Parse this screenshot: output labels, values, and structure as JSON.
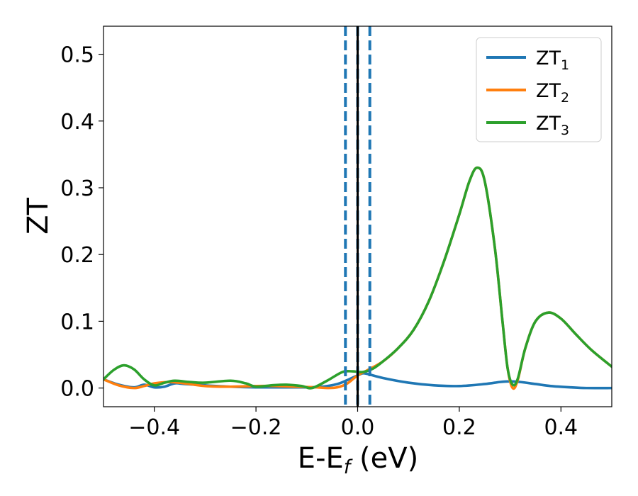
{
  "chart_data": {
    "type": "line",
    "xlabel": {
      "main": "E-E",
      "sub": "f",
      "rest": " (eV)"
    },
    "ylabel": "ZT",
    "xlim": [
      -0.5,
      0.5
    ],
    "ylim": [
      -0.028,
      0.542
    ],
    "xticks": [
      -0.4,
      -0.2,
      0.0,
      0.2,
      0.4
    ],
    "xtick_labels": [
      "−0.4",
      "−0.2",
      "0.0",
      "0.2",
      "0.4"
    ],
    "yticks": [
      0.0,
      0.1,
      0.2,
      0.3,
      0.4,
      0.5
    ],
    "ytick_labels": [
      "0.0",
      "0.1",
      "0.2",
      "0.3",
      "0.4",
      "0.5"
    ],
    "grid": false,
    "legend_position": "top-right",
    "vlines": [
      {
        "x": -0.024,
        "style": "dashed",
        "color": "#1f77b4"
      },
      {
        "x": 0.0,
        "style": "dashed",
        "color": "#1f77b4"
      },
      {
        "x": 0.0,
        "style": "solid",
        "color": "#000000"
      },
      {
        "x": 0.024,
        "style": "dashed",
        "color": "#1f77b4"
      }
    ],
    "series": [
      {
        "name": "ZT",
        "sub": "1",
        "color": "#1f77b4",
        "points": [
          [
            -0.5,
            0.013
          ],
          [
            -0.47,
            0.005
          ],
          [
            -0.44,
            0.001
          ],
          [
            -0.42,
            0.005
          ],
          [
            -0.4,
            0.001
          ],
          [
            -0.38,
            0.002
          ],
          [
            -0.36,
            0.007
          ],
          [
            -0.34,
            0.006
          ],
          [
            -0.3,
            0.004
          ],
          [
            -0.25,
            0.002
          ],
          [
            -0.2,
            0.001
          ],
          [
            -0.15,
            0.001
          ],
          [
            -0.1,
            0.001
          ],
          [
            -0.07,
            0.002
          ],
          [
            -0.04,
            0.006
          ],
          [
            -0.02,
            0.012
          ],
          [
            0.0,
            0.019
          ],
          [
            0.01,
            0.022
          ],
          [
            0.02,
            0.021
          ],
          [
            0.05,
            0.015
          ],
          [
            0.1,
            0.008
          ],
          [
            0.15,
            0.004
          ],
          [
            0.2,
            0.003
          ],
          [
            0.25,
            0.006
          ],
          [
            0.28,
            0.009
          ],
          [
            0.3,
            0.01
          ],
          [
            0.32,
            0.009
          ],
          [
            0.35,
            0.006
          ],
          [
            0.38,
            0.003
          ],
          [
            0.42,
            0.001
          ],
          [
            0.45,
            0.0
          ],
          [
            0.5,
            0.0
          ]
        ]
      },
      {
        "name": "ZT",
        "sub": "2",
        "color": "#ff7f0e",
        "points": [
          [
            -0.5,
            0.013
          ],
          [
            -0.47,
            0.004
          ],
          [
            -0.44,
            0.0
          ],
          [
            -0.42,
            0.003
          ],
          [
            -0.4,
            0.007
          ],
          [
            -0.37,
            0.009
          ],
          [
            -0.34,
            0.007
          ],
          [
            -0.3,
            0.003
          ],
          [
            -0.25,
            0.002
          ],
          [
            -0.2,
            0.003
          ],
          [
            -0.16,
            0.003
          ],
          [
            -0.12,
            0.002
          ],
          [
            -0.08,
            0.001
          ],
          [
            -0.06,
            0.0
          ],
          [
            -0.04,
            0.001
          ],
          [
            -0.02,
            0.007
          ],
          [
            0.0,
            0.019
          ],
          [
            0.02,
            0.027
          ],
          [
            0.05,
            0.04
          ],
          [
            0.08,
            0.06
          ],
          [
            0.11,
            0.087
          ],
          [
            0.14,
            0.13
          ],
          [
            0.17,
            0.19
          ],
          [
            0.2,
            0.26
          ],
          [
            0.22,
            0.31
          ],
          [
            0.235,
            0.33
          ],
          [
            0.25,
            0.31
          ],
          [
            0.27,
            0.21
          ],
          [
            0.285,
            0.1
          ],
          [
            0.295,
            0.03
          ],
          [
            0.305,
            0.0
          ],
          [
            0.315,
            0.012
          ],
          [
            0.33,
            0.06
          ],
          [
            0.35,
            0.1
          ],
          [
            0.375,
            0.113
          ],
          [
            0.4,
            0.104
          ],
          [
            0.43,
            0.08
          ],
          [
            0.46,
            0.057
          ],
          [
            0.5,
            0.032
          ]
        ]
      },
      {
        "name": "ZT",
        "sub": "3",
        "color": "#2ca02c",
        "points": [
          [
            -0.5,
            0.013
          ],
          [
            -0.48,
            0.027
          ],
          [
            -0.46,
            0.034
          ],
          [
            -0.44,
            0.028
          ],
          [
            -0.42,
            0.013
          ],
          [
            -0.4,
            0.004
          ],
          [
            -0.38,
            0.008
          ],
          [
            -0.36,
            0.011
          ],
          [
            -0.33,
            0.009
          ],
          [
            -0.3,
            0.008
          ],
          [
            -0.25,
            0.011
          ],
          [
            -0.22,
            0.007
          ],
          [
            -0.2,
            0.002
          ],
          [
            -0.17,
            0.004
          ],
          [
            -0.14,
            0.005
          ],
          [
            -0.11,
            0.003
          ],
          [
            -0.09,
            0.0
          ],
          [
            -0.06,
            0.011
          ],
          [
            -0.03,
            0.024
          ],
          [
            -0.01,
            0.025
          ],
          [
            0.01,
            0.024
          ],
          [
            0.03,
            0.029
          ],
          [
            0.05,
            0.04
          ],
          [
            0.08,
            0.06
          ],
          [
            0.11,
            0.087
          ],
          [
            0.14,
            0.13
          ],
          [
            0.17,
            0.19
          ],
          [
            0.2,
            0.26
          ],
          [
            0.22,
            0.31
          ],
          [
            0.235,
            0.33
          ],
          [
            0.25,
            0.31
          ],
          [
            0.27,
            0.21
          ],
          [
            0.285,
            0.1
          ],
          [
            0.295,
            0.03
          ],
          [
            0.305,
            0.005
          ],
          [
            0.315,
            0.014
          ],
          [
            0.33,
            0.06
          ],
          [
            0.35,
            0.1
          ],
          [
            0.375,
            0.113
          ],
          [
            0.4,
            0.104
          ],
          [
            0.43,
            0.08
          ],
          [
            0.46,
            0.057
          ],
          [
            0.5,
            0.032
          ]
        ]
      }
    ]
  }
}
